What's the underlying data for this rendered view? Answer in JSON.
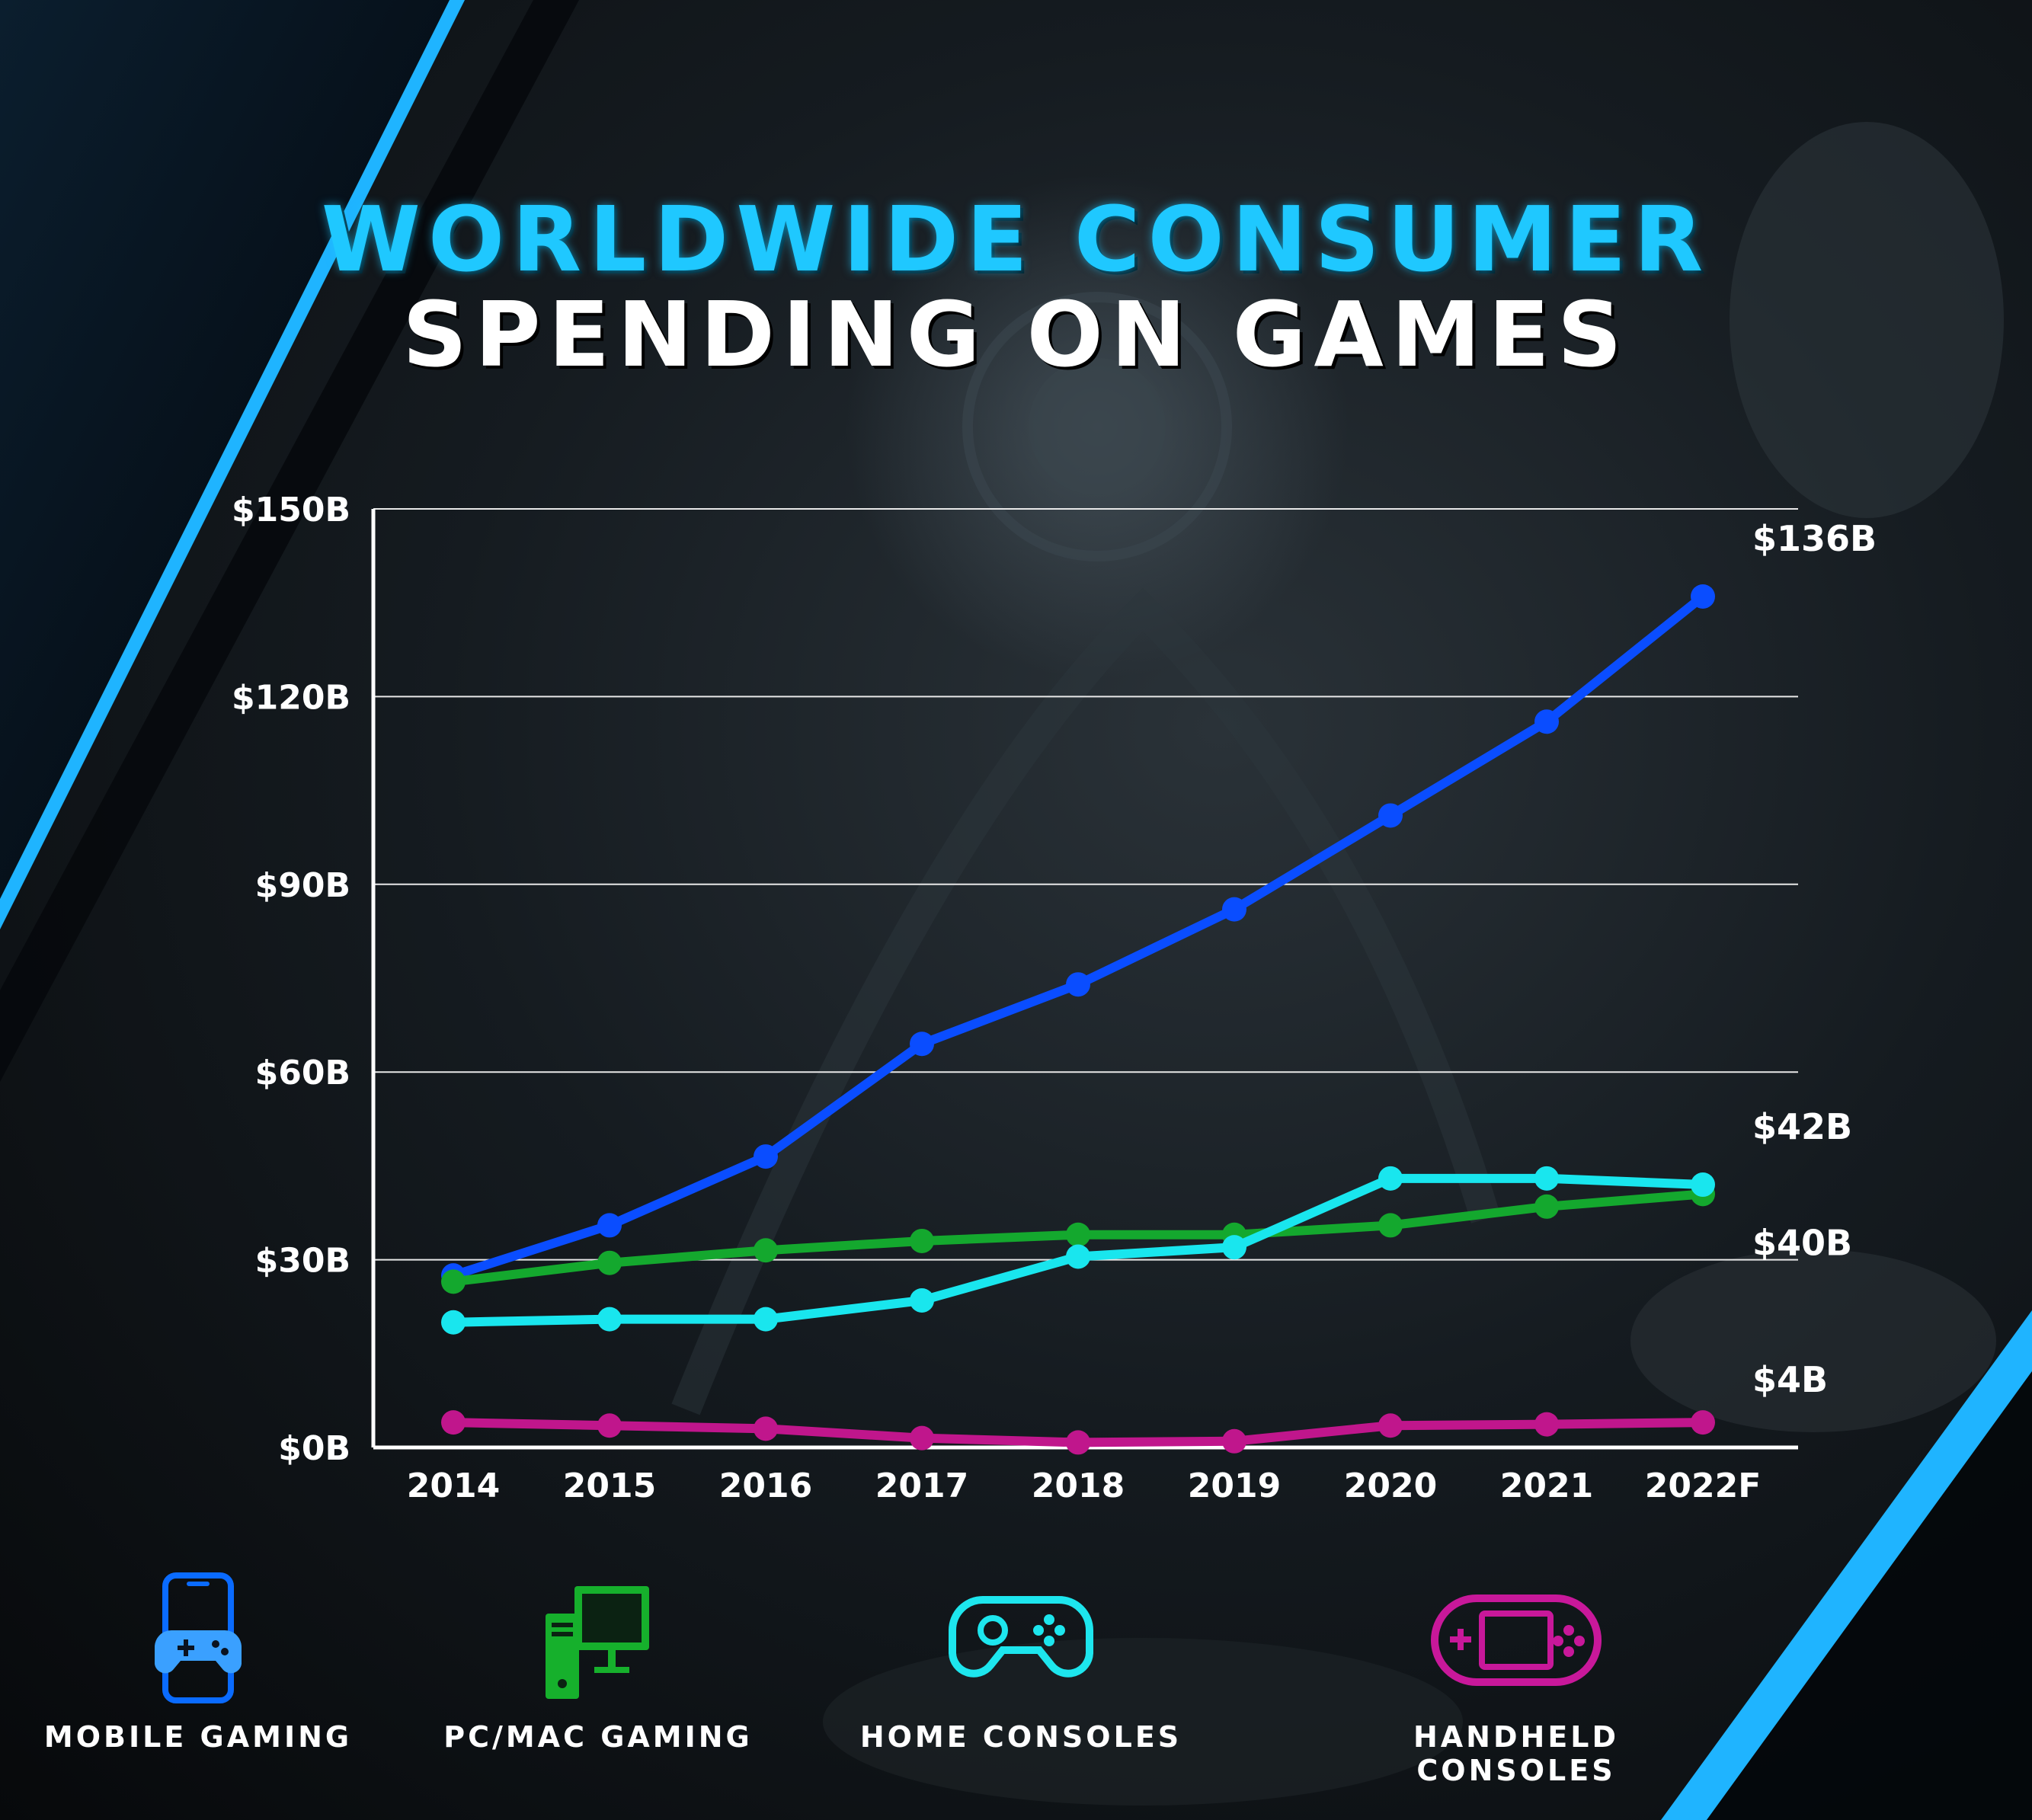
{
  "title": {
    "line1": "WORLDWIDE CONSUMER",
    "line2": "SPENDING ON GAMES"
  },
  "colors": {
    "mobile": "#0a4dff",
    "pc": "#14a82e",
    "home": "#19e6ee",
    "handheld": "#c0168c",
    "title_accent": "#1fc8ff"
  },
  "chart_data": {
    "type": "line",
    "categories": [
      "2014",
      "2015",
      "2016",
      "2017",
      "2018",
      "2019",
      "2020",
      "2021",
      "2022F"
    ],
    "ylim": [
      0,
      150
    ],
    "yticks": [
      0,
      30,
      60,
      90,
      120,
      150
    ],
    "ytick_labels": [
      "$0B",
      "$30B",
      "$60B",
      "$90B",
      "$120B",
      "$150B"
    ],
    "grid": true,
    "series": [
      {
        "name": "MOBILE GAMING",
        "key": "mobile",
        "values": [
          27.5,
          35.5,
          46.5,
          64.5,
          74,
          86,
          101,
          116,
          136
        ],
        "end_label": "$136B"
      },
      {
        "name": "PC/MAC GAMING",
        "key": "pc",
        "values": [
          26.5,
          29.5,
          31.5,
          33,
          34,
          34,
          35.5,
          38.5,
          40.5
        ],
        "end_label": "$40B"
      },
      {
        "name": "HOME CONSOLES",
        "key": "home",
        "values": [
          20,
          20.5,
          20.5,
          23.5,
          30.5,
          32,
          43,
          43,
          42
        ],
        "end_label": "$42B"
      },
      {
        "name": "HANDHELD CONSOLES",
        "key": "handheld",
        "values": [
          4,
          3.5,
          3,
          1.5,
          0.8,
          1,
          3.5,
          3.7,
          4
        ],
        "end_label": "$4B"
      }
    ]
  },
  "legend": [
    {
      "label": "MOBILE GAMING",
      "icon": "mobile-gaming-icon",
      "key": "mobile"
    },
    {
      "label": "PC/MAC GAMING",
      "icon": "pc-gaming-icon",
      "key": "pc"
    },
    {
      "label": "HOME CONSOLES",
      "icon": "gamepad-icon",
      "key": "home"
    },
    {
      "label": "HANDHELD CONSOLES",
      "icon": "handheld-console-icon",
      "key": "handheld"
    }
  ]
}
